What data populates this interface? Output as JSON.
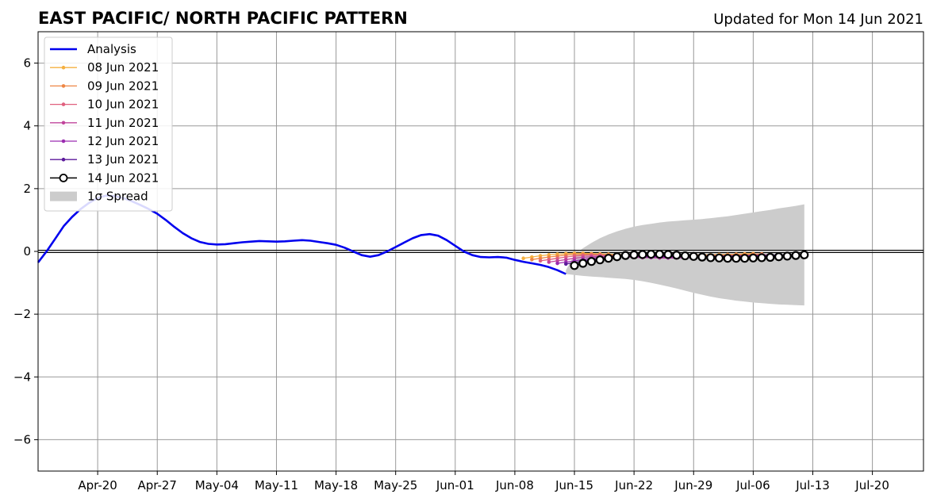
{
  "title": "EAST PACIFIC/ NORTH PACIFIC PATTERN",
  "updated": "Updated for Mon 14 Jun 2021",
  "colors": {
    "analysis": "#0000ee",
    "spread": "#cccccc",
    "grid": "#999999",
    "forecast_markers_face": "#ffffff",
    "forecast_markers_edge": "#000000"
  },
  "chart_data": {
    "type": "line",
    "title": "EAST PACIFIC/ NORTH PACIFIC PATTERN",
    "xlabel": "",
    "ylabel": "",
    "ylim": [
      -7,
      7
    ],
    "xlim": [
      "2021-04-13",
      "2021-07-26"
    ],
    "grid": true,
    "legend_position": "upper-left",
    "x_ticks": [
      "Apr-20",
      "Apr-27",
      "May-04",
      "May-11",
      "May-18",
      "May-25",
      "Jun-01",
      "Jun-08",
      "Jun-15",
      "Jun-22",
      "Jun-29",
      "Jul-06",
      "Jul-13",
      "Jul-20"
    ],
    "y_ticks": [
      "6",
      "4",
      "2",
      "0",
      "−2",
      "−4",
      "−6"
    ],
    "legend": [
      {
        "label": "Analysis",
        "color": "#0000ee"
      },
      {
        "label": "08 Jun 2021",
        "color": "#f5b041"
      },
      {
        "label": "09 Jun 2021",
        "color": "#ee8644"
      },
      {
        "label": "10 Jun 2021",
        "color": "#e0607e"
      },
      {
        "label": "11 Jun 2021",
        "color": "#c1449b"
      },
      {
        "label": "12 Jun 2021",
        "color": "#9b2cb0"
      },
      {
        "label": "13 Jun 2021",
        "color": "#5c1a9b"
      },
      {
        "label": "14 Jun 2021",
        "color": "#000000"
      },
      {
        "label": "1σ Spread",
        "color": "#cccccc"
      }
    ],
    "analysis": {
      "name": "Analysis",
      "x": [
        "2021-04-13",
        "2021-04-14",
        "2021-04-15",
        "2021-04-16",
        "2021-04-17",
        "2021-04-18",
        "2021-04-19",
        "2021-04-20",
        "2021-04-21",
        "2021-04-22",
        "2021-04-23",
        "2021-04-24",
        "2021-04-25",
        "2021-04-26",
        "2021-04-27",
        "2021-04-28",
        "2021-04-29",
        "2021-04-30",
        "2021-05-01",
        "2021-05-02",
        "2021-05-03",
        "2021-05-04",
        "2021-05-05",
        "2021-05-06",
        "2021-05-07",
        "2021-05-08",
        "2021-05-09",
        "2021-05-10",
        "2021-05-11",
        "2021-05-12",
        "2021-05-13",
        "2021-05-14",
        "2021-05-15",
        "2021-05-16",
        "2021-05-17",
        "2021-05-18",
        "2021-05-19",
        "2021-05-20",
        "2021-05-21",
        "2021-05-22",
        "2021-05-23",
        "2021-05-24",
        "2021-05-25",
        "2021-05-26",
        "2021-05-27",
        "2021-05-28",
        "2021-05-29",
        "2021-05-30",
        "2021-05-31",
        "2021-06-01",
        "2021-06-02",
        "2021-06-03",
        "2021-06-04",
        "2021-06-05",
        "2021-06-06",
        "2021-06-07",
        "2021-06-08",
        "2021-06-09",
        "2021-06-10",
        "2021-06-11",
        "2021-06-12",
        "2021-06-13",
        "2021-06-14"
      ],
      "y": [
        -0.35,
        0.0,
        0.4,
        0.8,
        1.1,
        1.35,
        1.55,
        1.7,
        1.78,
        1.76,
        1.7,
        1.6,
        1.48,
        1.35,
        1.2,
        1.0,
        0.78,
        0.58,
        0.42,
        0.3,
        0.24,
        0.22,
        0.23,
        0.26,
        0.29,
        0.31,
        0.33,
        0.32,
        0.31,
        0.32,
        0.34,
        0.36,
        0.34,
        0.3,
        0.26,
        0.21,
        0.12,
        0.0,
        -0.12,
        -0.17,
        -0.12,
        0.0,
        0.14,
        0.28,
        0.42,
        0.52,
        0.55,
        0.5,
        0.36,
        0.18,
        0.0,
        -0.12,
        -0.18,
        -0.19,
        -0.18,
        -0.2,
        -0.27,
        -0.33,
        -0.38,
        -0.43,
        -0.5,
        -0.6,
        -0.72
      ]
    },
    "forecasts": [
      {
        "name": "08 Jun 2021",
        "x": [
          "2021-06-09",
          "2021-06-10",
          "2021-06-11",
          "2021-06-12",
          "2021-06-13",
          "2021-06-14",
          "2021-06-15",
          "2021-06-16",
          "2021-06-17",
          "2021-06-18",
          "2021-06-19",
          "2021-06-20",
          "2021-06-21",
          "2021-06-22",
          "2021-06-23",
          "2021-06-24",
          "2021-06-25",
          "2021-06-26",
          "2021-06-27",
          "2021-06-28",
          "2021-06-29",
          "2021-06-30",
          "2021-07-01",
          "2021-07-02",
          "2021-07-03",
          "2021-07-04",
          "2021-07-05",
          "2021-07-06"
        ],
        "y": [
          -0.22,
          -0.18,
          -0.14,
          -0.11,
          -0.09,
          -0.07,
          -0.06,
          -0.06,
          -0.07,
          -0.08,
          -0.09,
          -0.1,
          -0.11,
          -0.12,
          -0.12,
          -0.12,
          -0.12,
          -0.12,
          -0.12,
          -0.12,
          -0.12,
          -0.11,
          -0.11,
          -0.1,
          -0.1,
          -0.09,
          -0.08,
          -0.07
        ]
      },
      {
        "name": "09 Jun 2021",
        "x": [
          "2021-06-10",
          "2021-06-11",
          "2021-06-12",
          "2021-06-13",
          "2021-06-14",
          "2021-06-15",
          "2021-06-16",
          "2021-06-17",
          "2021-06-18",
          "2021-06-19",
          "2021-06-20",
          "2021-06-21",
          "2021-06-22",
          "2021-06-23",
          "2021-06-24",
          "2021-06-25",
          "2021-06-26",
          "2021-06-27",
          "2021-06-28",
          "2021-06-29",
          "2021-06-30",
          "2021-07-01",
          "2021-07-02",
          "2021-07-03",
          "2021-07-04",
          "2021-07-05",
          "2021-07-06",
          "2021-07-07"
        ],
        "y": [
          -0.26,
          -0.22,
          -0.18,
          -0.15,
          -0.12,
          -0.1,
          -0.09,
          -0.09,
          -0.1,
          -0.11,
          -0.12,
          -0.13,
          -0.14,
          -0.14,
          -0.14,
          -0.14,
          -0.14,
          -0.14,
          -0.14,
          -0.13,
          -0.13,
          -0.12,
          -0.12,
          -0.11,
          -0.1,
          -0.1,
          -0.09,
          -0.08
        ]
      },
      {
        "name": "10 Jun 2021",
        "x": [
          "2021-06-11",
          "2021-06-12",
          "2021-06-13",
          "2021-06-14",
          "2021-06-15",
          "2021-06-16",
          "2021-06-17",
          "2021-06-18",
          "2021-06-19",
          "2021-06-20",
          "2021-06-21",
          "2021-06-22",
          "2021-06-23",
          "2021-06-24",
          "2021-06-25",
          "2021-06-26",
          "2021-06-27",
          "2021-06-28",
          "2021-06-29",
          "2021-06-30",
          "2021-07-01",
          "2021-07-02",
          "2021-07-03",
          "2021-07-04",
          "2021-07-05",
          "2021-07-06",
          "2021-07-07",
          "2021-07-08"
        ],
        "y": [
          -0.3,
          -0.26,
          -0.22,
          -0.18,
          -0.15,
          -0.13,
          -0.12,
          -0.12,
          -0.13,
          -0.14,
          -0.15,
          -0.16,
          -0.17,
          -0.17,
          -0.17,
          -0.17,
          -0.17,
          -0.17,
          -0.16,
          -0.16,
          -0.15,
          -0.15,
          -0.14,
          -0.13,
          -0.13,
          -0.12,
          -0.11,
          -0.11
        ]
      },
      {
        "name": "11 Jun 2021",
        "x": [
          "2021-06-12",
          "2021-06-13",
          "2021-06-14",
          "2021-06-15",
          "2021-06-16",
          "2021-06-17",
          "2021-06-18",
          "2021-06-19",
          "2021-06-20",
          "2021-06-21",
          "2021-06-22",
          "2021-06-23",
          "2021-06-24",
          "2021-06-25",
          "2021-06-26",
          "2021-06-27",
          "2021-06-28",
          "2021-06-29",
          "2021-06-30",
          "2021-07-01",
          "2021-07-02",
          "2021-07-03",
          "2021-07-04",
          "2021-07-05",
          "2021-07-06",
          "2021-07-07",
          "2021-07-08",
          "2021-07-09"
        ],
        "y": [
          -0.34,
          -0.3,
          -0.26,
          -0.22,
          -0.19,
          -0.17,
          -0.16,
          -0.16,
          -0.17,
          -0.18,
          -0.19,
          -0.2,
          -0.2,
          -0.21,
          -0.21,
          -0.21,
          -0.2,
          -0.2,
          -0.19,
          -0.19,
          -0.18,
          -0.17,
          -0.17,
          -0.16,
          -0.15,
          -0.15,
          -0.14,
          -0.13
        ]
      },
      {
        "name": "12 Jun 2021",
        "x": [
          "2021-06-13",
          "2021-06-14",
          "2021-06-15",
          "2021-06-16",
          "2021-06-17",
          "2021-06-18",
          "2021-06-19",
          "2021-06-20",
          "2021-06-21",
          "2021-06-22",
          "2021-06-23",
          "2021-06-24",
          "2021-06-25",
          "2021-06-26",
          "2021-06-27",
          "2021-06-28",
          "2021-06-29",
          "2021-06-30",
          "2021-07-01",
          "2021-07-02",
          "2021-07-03",
          "2021-07-04",
          "2021-07-05",
          "2021-07-06",
          "2021-07-07",
          "2021-07-08",
          "2021-07-09",
          "2021-07-10"
        ],
        "y": [
          -0.38,
          -0.34,
          -0.3,
          -0.26,
          -0.22,
          -0.19,
          -0.17,
          -0.16,
          -0.16,
          -0.17,
          -0.18,
          -0.19,
          -0.19,
          -0.2,
          -0.2,
          -0.2,
          -0.19,
          -0.19,
          -0.18,
          -0.18,
          -0.17,
          -0.16,
          -0.16,
          -0.15,
          -0.14,
          -0.14,
          -0.13,
          -0.12
        ]
      },
      {
        "name": "13 Jun 2021",
        "x": [
          "2021-06-14",
          "2021-06-15",
          "2021-06-16",
          "2021-06-17",
          "2021-06-18",
          "2021-06-19",
          "2021-06-20",
          "2021-06-21",
          "2021-06-22",
          "2021-06-23",
          "2021-06-24",
          "2021-06-25",
          "2021-06-26",
          "2021-06-27",
          "2021-06-28",
          "2021-06-29",
          "2021-06-30",
          "2021-07-01",
          "2021-07-02",
          "2021-07-03",
          "2021-07-04",
          "2021-07-05",
          "2021-07-06",
          "2021-07-07",
          "2021-07-08",
          "2021-07-09",
          "2021-07-10",
          "2021-07-11"
        ],
        "y": [
          -0.4,
          -0.36,
          -0.31,
          -0.27,
          -0.23,
          -0.2,
          -0.18,
          -0.16,
          -0.15,
          -0.15,
          -0.15,
          -0.16,
          -0.16,
          -0.16,
          -0.16,
          -0.16,
          -0.16,
          -0.16,
          -0.15,
          -0.15,
          -0.14,
          -0.14,
          -0.13,
          -0.13,
          -0.12,
          -0.12,
          -0.11,
          -0.11
        ]
      },
      {
        "name": "14 Jun 2021",
        "x": [
          "2021-06-15",
          "2021-06-16",
          "2021-06-17",
          "2021-06-18",
          "2021-06-19",
          "2021-06-20",
          "2021-06-21",
          "2021-06-22",
          "2021-06-23",
          "2021-06-24",
          "2021-06-25",
          "2021-06-26",
          "2021-06-27",
          "2021-06-28",
          "2021-06-29",
          "2021-06-30",
          "2021-07-01",
          "2021-07-02",
          "2021-07-03",
          "2021-07-04",
          "2021-07-05",
          "2021-07-06",
          "2021-07-07",
          "2021-07-08",
          "2021-07-09",
          "2021-07-10",
          "2021-07-11",
          "2021-07-12"
        ],
        "y": [
          -0.45,
          -0.38,
          -0.32,
          -0.27,
          -0.22,
          -0.17,
          -0.13,
          -0.11,
          -0.1,
          -0.09,
          -0.09,
          -0.1,
          -0.12,
          -0.14,
          -0.16,
          -0.18,
          -0.2,
          -0.21,
          -0.22,
          -0.22,
          -0.22,
          -0.21,
          -0.2,
          -0.19,
          -0.17,
          -0.15,
          -0.13,
          -0.11
        ]
      }
    ],
    "spread": {
      "name": "1σ Spread",
      "x": [
        "2021-06-14",
        "2021-06-15",
        "2021-06-16",
        "2021-06-17",
        "2021-06-18",
        "2021-06-19",
        "2021-06-20",
        "2021-06-21",
        "2021-06-22",
        "2021-06-23",
        "2021-06-24",
        "2021-06-25",
        "2021-06-26",
        "2021-06-27",
        "2021-06-28",
        "2021-06-29",
        "2021-06-30",
        "2021-07-01",
        "2021-07-02",
        "2021-07-03",
        "2021-07-04",
        "2021-07-05",
        "2021-07-06",
        "2021-07-07",
        "2021-07-08",
        "2021-07-09",
        "2021-07-10",
        "2021-07-11",
        "2021-07-12"
      ],
      "upper": [
        -0.6,
        -0.1,
        0.1,
        0.27,
        0.42,
        0.54,
        0.64,
        0.72,
        0.79,
        0.84,
        0.88,
        0.92,
        0.95,
        0.97,
        0.99,
        1.01,
        1.03,
        1.06,
        1.09,
        1.12,
        1.16,
        1.2,
        1.24,
        1.28,
        1.32,
        1.37,
        1.41,
        1.45,
        1.5
      ],
      "lower": [
        -0.72,
        -0.75,
        -0.78,
        -0.8,
        -0.82,
        -0.84,
        -0.86,
        -0.88,
        -0.91,
        -0.95,
        -1.0,
        -1.06,
        -1.12,
        -1.18,
        -1.25,
        -1.32,
        -1.38,
        -1.44,
        -1.49,
        -1.53,
        -1.57,
        -1.6,
        -1.63,
        -1.65,
        -1.67,
        -1.69,
        -1.7,
        -1.71,
        -1.72
      ]
    }
  }
}
